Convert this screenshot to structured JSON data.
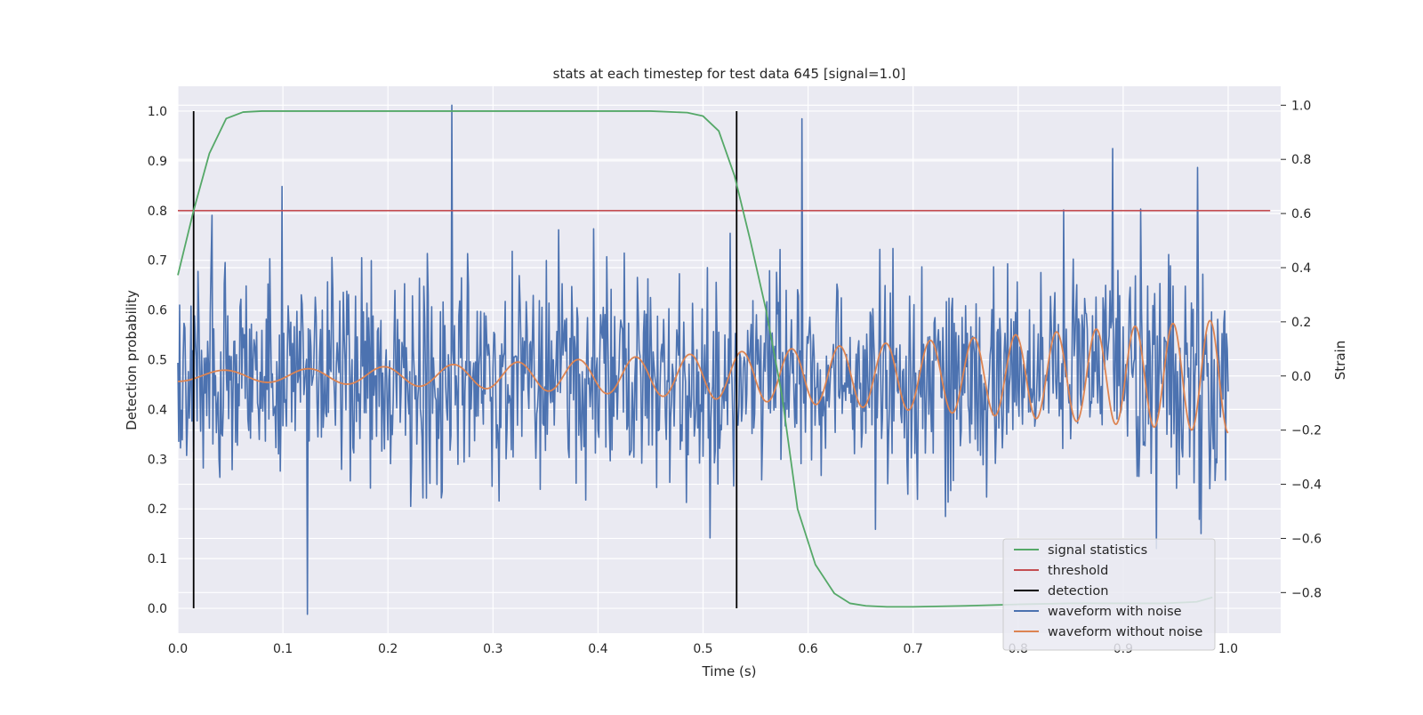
{
  "chart_data": {
    "type": "line",
    "title": "stats at each timestep for test data 645 [signal=1.0]",
    "xlabel": "Time (s)",
    "ylabel_left": "Detection probability",
    "ylabel_right": "Strain",
    "xlim": [
      0.0,
      1.05
    ],
    "ylim_left": [
      -0.05,
      1.05
    ],
    "ylim_right": [
      -0.95,
      1.07
    ],
    "x_ticks": [
      0.0,
      0.1,
      0.2,
      0.3,
      0.4,
      0.5,
      0.6,
      0.7,
      0.8,
      0.9,
      1.0
    ],
    "x_tick_labels": [
      "0.0",
      "0.1",
      "0.2",
      "0.3",
      "0.4",
      "0.5",
      "0.6",
      "0.7",
      "0.8",
      "0.9",
      "1.0"
    ],
    "y_left_ticks": [
      0.0,
      0.1,
      0.2,
      0.3,
      0.4,
      0.5,
      0.6,
      0.7,
      0.8,
      0.9,
      1.0
    ],
    "y_left_tick_labels": [
      "0.0",
      "0.1",
      "0.2",
      "0.3",
      "0.4",
      "0.5",
      "0.6",
      "0.7",
      "0.8",
      "0.9",
      "1.0"
    ],
    "y_right_ticks": [
      -0.8,
      -0.6,
      -0.4,
      -0.2,
      0.0,
      0.2,
      0.4,
      0.6,
      0.8,
      1.0
    ],
    "y_right_tick_labels": [
      "−0.8",
      "−0.6",
      "−0.4",
      "−0.2",
      "0.0",
      "0.2",
      "0.4",
      "0.6",
      "0.8",
      "1.0"
    ],
    "grid": true,
    "legend_position": "bottom-right",
    "series": [
      {
        "name": "signal statistics",
        "axis": "left",
        "color": "#55a868",
        "x": [
          0.0,
          0.015,
          0.03,
          0.046,
          0.062,
          0.08,
          0.1,
          0.2,
          0.3,
          0.4,
          0.45,
          0.485,
          0.5,
          0.515,
          0.53,
          0.545,
          0.56,
          0.575,
          0.59,
          0.607,
          0.625,
          0.64,
          0.655,
          0.675,
          0.7,
          0.75,
          0.8,
          0.85,
          0.9,
          0.94,
          0.97,
          0.985
        ],
        "values": [
          0.67,
          0.8,
          0.915,
          0.985,
          0.998,
          1.0,
          1.0,
          1.0,
          1.0,
          1.0,
          1.0,
          0.997,
          0.99,
          0.96,
          0.87,
          0.74,
          0.6,
          0.43,
          0.2,
          0.088,
          0.03,
          0.01,
          0.005,
          0.003,
          0.003,
          0.005,
          0.008,
          0.01,
          0.01,
          0.01,
          0.013,
          0.022
        ]
      },
      {
        "name": "threshold",
        "axis": "left",
        "color": "#c44e52",
        "x": [
          0.0,
          1.04
        ],
        "values": [
          0.8,
          0.8
        ]
      },
      {
        "name": "detection",
        "axis": "left",
        "color": "#000000",
        "segments": [
          {
            "x": 0.015,
            "y": [
              0.0,
              1.0
            ]
          },
          {
            "x": 0.532,
            "y": [
              0.0,
              1.0
            ]
          }
        ]
      },
      {
        "name": "waveform with noise",
        "axis": "right",
        "color": "#4c72b0",
        "x": [
          0.0,
          1.0
        ],
        "noise_std": 0.2,
        "peaks": [
          {
            "x": 0.261,
            "value": 1.0
          },
          {
            "x": 0.594,
            "value": 0.95
          },
          {
            "x": 0.099,
            "value": 0.7
          },
          {
            "x": 0.89,
            "value": 0.84
          },
          {
            "x": 0.971,
            "value": 0.77
          },
          {
            "x": 0.123,
            "value": -0.88
          }
        ]
      },
      {
        "name": "waveform without noise",
        "axis": "right",
        "color": "#dd8452",
        "x": [
          0.0,
          1.0
        ],
        "cycles": 20,
        "amplitude_start": 0.02,
        "amplitude_end": 0.21,
        "offset": 0.0
      }
    ]
  }
}
